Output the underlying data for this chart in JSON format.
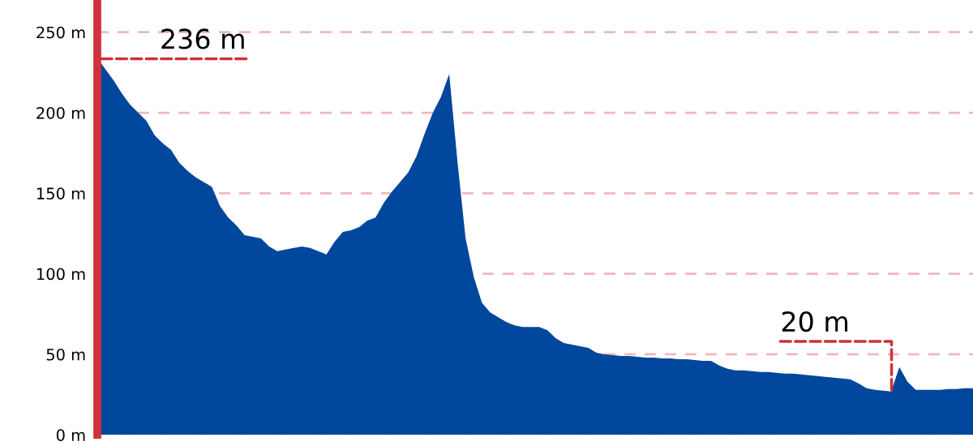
{
  "chart_data": {
    "type": "area",
    "color": "#00479d",
    "categories": [
      null,
      null,
      null,
      null,
      null,
      null,
      null,
      null,
      null,
      null,
      null,
      null,
      null,
      null,
      null,
      null,
      null,
      null,
      null,
      null,
      null,
      null,
      null,
      null,
      null,
      null,
      null,
      null,
      null,
      null,
      null,
      null,
      null,
      null,
      null,
      null,
      null,
      null,
      null,
      null,
      null,
      null,
      null,
      null,
      null,
      null,
      null,
      null,
      null,
      null,
      null,
      null,
      null,
      null,
      null,
      null,
      null,
      null,
      null,
      null,
      null,
      null,
      null,
      null,
      null,
      null,
      null,
      null,
      null,
      null,
      null,
      null,
      null,
      null,
      null,
      null,
      null,
      null,
      null,
      null,
      null,
      null,
      null,
      null,
      null,
      null,
      null,
      null,
      null,
      null,
      null,
      null,
      null,
      null,
      null,
      null,
      null,
      null,
      null,
      null,
      null,
      null,
      null,
      null,
      null,
      null,
      null,
      null
    ],
    "values": [
      234,
      227,
      220,
      212,
      205,
      200,
      195,
      186,
      181,
      177,
      169,
      164,
      160,
      157,
      154,
      142,
      135,
      130,
      124,
      123,
      122,
      117,
      114,
      115,
      116,
      117,
      116,
      114,
      112,
      120,
      126,
      127,
      129,
      133,
      135,
      144,
      151,
      157,
      163,
      173,
      187,
      200,
      210,
      224,
      170,
      122,
      98,
      82,
      76,
      73,
      70,
      68,
      67,
      67,
      67,
      65,
      60,
      57,
      56,
      55,
      54,
      51,
      50,
      49.5,
      49,
      49,
      48.5,
      48,
      48,
      47.5,
      47.5,
      47,
      47,
      46.5,
      46,
      46,
      43,
      41,
      40,
      40,
      39.5,
      39,
      39,
      38.5,
      38,
      38,
      37.5,
      37,
      36.5,
      36,
      35.5,
      35,
      34.5,
      32,
      29,
      28,
      27.5,
      27,
      42,
      33,
      28,
      28,
      28,
      28,
      28.5,
      28.5,
      29,
      29
    ],
    "ylim": [
      0,
      270
    ],
    "yticks": [
      {
        "value": 0,
        "label": "0 m"
      },
      {
        "value": 50,
        "label": "50 m"
      },
      {
        "value": 100,
        "label": "100 m"
      },
      {
        "value": 150,
        "label": "150 m"
      },
      {
        "value": 200,
        "label": "200 m"
      },
      {
        "value": 250,
        "label": "250 m"
      }
    ],
    "grid": "y",
    "annotations": [
      "236 m",
      "20 m"
    ]
  }
}
